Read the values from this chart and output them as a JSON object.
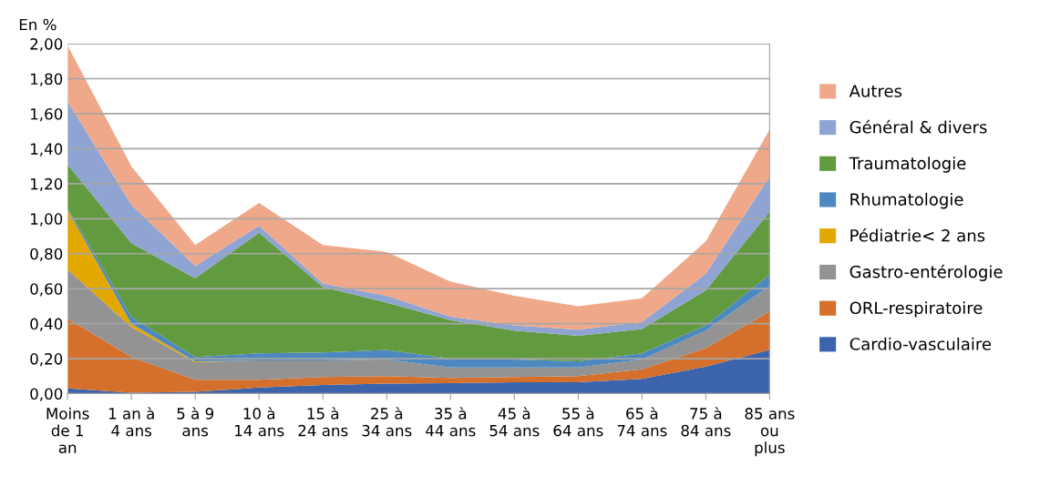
{
  "chart_data": {
    "type": "area",
    "stacked": true,
    "ylabel": "En %",
    "categories": [
      "Moins\nde 1\nan",
      "1 an à\n4 ans",
      "5 à 9\nans",
      "10 à\n14 ans",
      "15 à\n24 ans",
      "25 à\n34 ans",
      "35 à\n44 ans",
      "45 à\n54 ans",
      "55 à\n64 ans",
      "65 à\n74 ans",
      "75 à\n84 ans",
      "85 ans\nou\nplus"
    ],
    "series": [
      {
        "name": "Cardio-vasculaire",
        "color": "#3c64ad",
        "values": [
          0.03,
          0.005,
          0.01,
          0.035,
          0.05,
          0.057,
          0.06,
          0.065,
          0.065,
          0.085,
          0.155,
          0.25
        ]
      },
      {
        "name": "ORL-respiratoire",
        "color": "#d4702c",
        "values": [
          0.4,
          0.205,
          0.07,
          0.045,
          0.045,
          0.043,
          0.03,
          0.03,
          0.035,
          0.055,
          0.105,
          0.22
        ]
      },
      {
        "name": "Gastro-entérologie",
        "color": "#939393",
        "values": [
          0.28,
          0.17,
          0.1,
          0.11,
          0.095,
          0.095,
          0.06,
          0.055,
          0.05,
          0.055,
          0.1,
          0.145
        ]
      },
      {
        "name": "Pédiatrie< 2 ans",
        "color": "#e3a800",
        "values": [
          0.34,
          0.02,
          0.005,
          0,
          0,
          0,
          0,
          0,
          0,
          0,
          0,
          0
        ]
      },
      {
        "name": "Rhumatologie",
        "color": "#4d89c0",
        "values": [
          0.01,
          0.04,
          0.025,
          0.04,
          0.045,
          0.055,
          0.05,
          0.045,
          0.035,
          0.035,
          0.03,
          0.065
        ]
      },
      {
        "name": "Traumatologie",
        "color": "#629a3f",
        "values": [
          0.25,
          0.42,
          0.45,
          0.69,
          0.375,
          0.27,
          0.22,
          0.165,
          0.145,
          0.14,
          0.2,
          0.36
        ]
      },
      {
        "name": "Général & divers",
        "color": "#8fa4d3",
        "values": [
          0.36,
          0.22,
          0.07,
          0.04,
          0.02,
          0.04,
          0.02,
          0.03,
          0.035,
          0.04,
          0.095,
          0.2
        ]
      },
      {
        "name": "Autres",
        "color": "#f0a88a",
        "values": [
          0.32,
          0.22,
          0.12,
          0.13,
          0.22,
          0.25,
          0.2,
          0.17,
          0.135,
          0.135,
          0.185,
          0.27
        ]
      }
    ],
    "ylim": [
      0,
      2
    ],
    "yticks": [
      {
        "value": 0,
        "label": "0,00"
      },
      {
        "value": 0.2,
        "label": "0,20"
      },
      {
        "value": 0.4,
        "label": "0,40"
      },
      {
        "value": 0.6,
        "label": "0,60"
      },
      {
        "value": 0.8,
        "label": "0,80"
      },
      {
        "value": 1.0,
        "label": "1,00"
      },
      {
        "value": 1.2,
        "label": "1,20"
      },
      {
        "value": 1.4,
        "label": "1,40"
      },
      {
        "value": 1.6,
        "label": "1,60"
      },
      {
        "value": 1.8,
        "label": "1,80"
      },
      {
        "value": 2.0,
        "label": "2,00"
      }
    ],
    "grid": "y",
    "legend": "right"
  }
}
